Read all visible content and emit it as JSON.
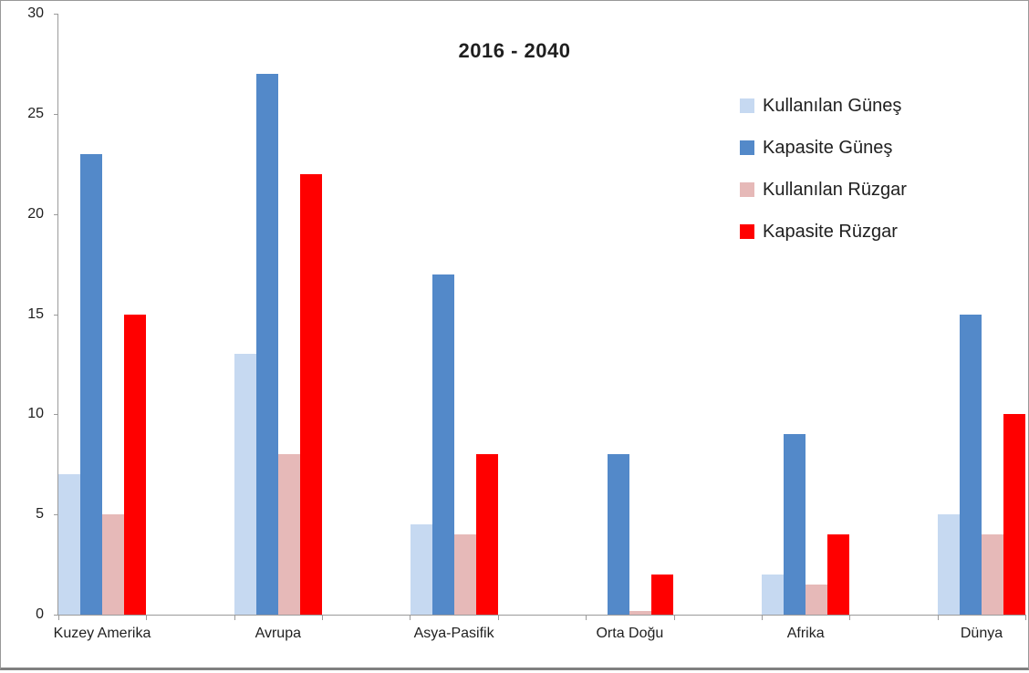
{
  "frame": {
    "background": "#ffffff",
    "border_color": "#999999",
    "bottom_strip_color": "#808080"
  },
  "chart_data": {
    "type": "bar",
    "title": "2016 - 2040",
    "categories": [
      "Kuzey Amerika",
      "Avrupa",
      "Asya-Pasifik",
      "Orta Doğu",
      "Afrika",
      "Dünya"
    ],
    "series": [
      {
        "name": "Kullanılan Güneş",
        "color": "#c6d9f1",
        "values": [
          7,
          13,
          4.5,
          0,
          2,
          5
        ]
      },
      {
        "name": "Kapasite Güneş",
        "color": "#5389c9",
        "values": [
          23,
          27,
          17,
          8,
          9,
          15
        ]
      },
      {
        "name": "Kullanılan Rüzgar",
        "color": "#e6b9b8",
        "values": [
          5,
          8,
          4,
          0.2,
          1.5,
          4
        ]
      },
      {
        "name": "Kapasite Rüzgar",
        "color": "#ff0000",
        "values": [
          15,
          22,
          8,
          2,
          4,
          10
        ]
      }
    ],
    "xlabel": "",
    "ylabel": "",
    "ylim": [
      0,
      30
    ],
    "yticks": [
      0,
      5,
      10,
      15,
      20,
      25,
      30
    ],
    "x_minor_tick_count": 12,
    "grid": false,
    "legend_position": "upper-right",
    "axis_color": "#9b9b9b",
    "text_color": "#1f1f1f"
  }
}
